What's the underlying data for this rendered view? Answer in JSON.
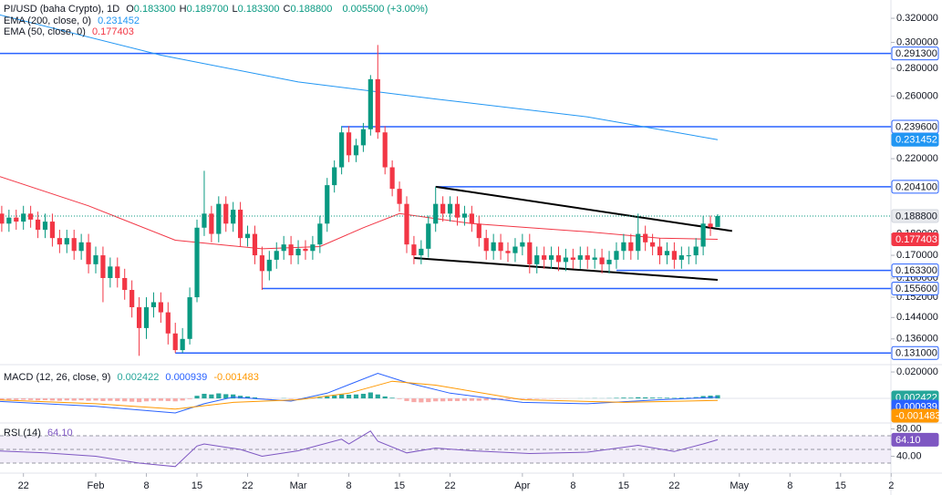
{
  "chart_data": [
    {
      "type": "candlestick",
      "title": "PI/USD (baha Crypto), 1D",
      "header": [
        {
          "key": "O",
          "value": "0.183300"
        },
        {
          "key": "H",
          "value": "0.189700"
        },
        {
          "key": "L",
          "value": "0.183300"
        },
        {
          "key": "C",
          "value": "0.188800"
        }
      ],
      "change": "0.005500 (+3.00%)",
      "up_color": "#089981",
      "down_color": "#f23645",
      "log_scale": true,
      "grid": false,
      "ylim": [
        0.1276,
        0.336
      ],
      "yticks": [
        {
          "value": 0.32,
          "label": "0.320000"
        },
        {
          "value": 0.3,
          "label": "0.300000"
        },
        {
          "value": 0.28,
          "label": "0.280000"
        },
        {
          "value": 0.26,
          "label": "0.260000"
        },
        {
          "value": 0.22,
          "label": "0.220000"
        },
        {
          "value": 0.18,
          "label": "0.180000"
        },
        {
          "value": 0.17,
          "label": "0.170000"
        },
        {
          "value": 0.16,
          "label": "0.160000"
        },
        {
          "value": 0.152,
          "label": "0.152000"
        },
        {
          "value": 0.144,
          "label": "0.144000"
        },
        {
          "value": 0.136,
          "label": "0.136000"
        }
      ],
      "xticks": [
        {
          "value": "01-22",
          "label": "22"
        },
        {
          "value": "02-01",
          "label": "Feb"
        },
        {
          "value": "02-08",
          "label": "8"
        },
        {
          "value": "02-15",
          "label": "15"
        },
        {
          "value": "02-22",
          "label": "22"
        },
        {
          "value": "03-01",
          "label": "Mar"
        },
        {
          "value": "03-08",
          "label": "8"
        },
        {
          "value": "03-15",
          "label": "15"
        },
        {
          "value": "03-22",
          "label": "22"
        },
        {
          "value": "04-01",
          "label": "Apr"
        },
        {
          "value": "04-08",
          "label": "8"
        },
        {
          "value": "04-15",
          "label": "15"
        },
        {
          "value": "04-22",
          "label": "22"
        },
        {
          "value": "05-01",
          "label": "May"
        },
        {
          "value": "05-08",
          "label": "8"
        },
        {
          "value": "05-15",
          "label": "15"
        },
        {
          "value": "05-22",
          "label": "2"
        }
      ],
      "dates": [
        "01-18",
        "01-19",
        "01-20",
        "01-21",
        "01-22",
        "01-23",
        "01-24",
        "01-25",
        "01-26",
        "01-27",
        "01-28",
        "01-29",
        "01-30",
        "01-31",
        "02-01",
        "02-02",
        "02-03",
        "02-04",
        "02-05",
        "02-06",
        "02-07",
        "02-08",
        "02-09",
        "02-10",
        "02-11",
        "02-12",
        "02-13",
        "02-14",
        "02-15",
        "02-16",
        "02-17",
        "02-18",
        "02-19",
        "02-20",
        "02-21",
        "02-22",
        "02-23",
        "02-24",
        "02-25",
        "02-26",
        "02-27",
        "02-28",
        "03-01",
        "03-02",
        "03-03",
        "03-04",
        "03-05",
        "03-06",
        "03-07",
        "03-08",
        "03-09",
        "03-10",
        "03-11",
        "03-12",
        "03-13",
        "03-14",
        "03-15",
        "03-16",
        "03-17",
        "03-18",
        "03-19",
        "03-20",
        "03-21",
        "03-22",
        "03-23",
        "03-24",
        "03-25",
        "03-26",
        "03-27",
        "03-28",
        "03-29",
        "03-30",
        "03-31",
        "04-01",
        "04-02",
        "04-03",
        "04-04",
        "04-05",
        "04-06",
        "04-07",
        "04-08",
        "04-09",
        "04-10",
        "04-11",
        "04-12",
        "04-13",
        "04-14",
        "04-15",
        "04-16",
        "04-17",
        "04-18",
        "04-19",
        "04-20",
        "04-21",
        "04-22",
        "04-23",
        "04-24",
        "04-25",
        "04-26",
        "04-27",
        "04-28"
      ],
      "open": [
        0.198,
        0.19,
        0.185,
        0.188,
        0.186,
        0.19,
        0.187,
        0.182,
        0.186,
        0.178,
        0.175,
        0.178,
        0.172,
        0.176,
        0.166,
        0.17,
        0.16,
        0.165,
        0.16,
        0.155,
        0.148,
        0.14,
        0.148,
        0.15,
        0.146,
        0.138,
        0.132,
        0.136,
        0.152,
        0.183,
        0.19,
        0.18,
        0.195,
        0.185,
        0.192,
        0.178,
        0.18,
        0.17,
        0.163,
        0.168,
        0.172,
        0.175,
        0.17,
        0.173,
        0.172,
        0.175,
        0.185,
        0.205,
        0.215,
        0.236,
        0.222,
        0.228,
        0.238,
        0.272,
        0.236,
        0.215,
        0.203,
        0.195,
        0.175,
        0.17,
        0.173,
        0.185,
        0.195,
        0.19,
        0.195,
        0.188,
        0.19,
        0.185,
        0.178,
        0.172,
        0.176,
        0.172,
        0.171,
        0.174,
        0.176,
        0.166,
        0.17,
        0.168,
        0.17,
        0.167,
        0.169,
        0.168,
        0.17,
        0.168,
        0.169,
        0.166,
        0.168,
        0.172,
        0.176,
        0.172,
        0.18,
        0.176,
        0.174,
        0.17,
        0.172,
        0.168,
        0.17,
        0.17,
        0.174,
        0.185,
        0.1833
      ],
      "high": [
        0.202,
        0.194,
        0.192,
        0.192,
        0.194,
        0.194,
        0.191,
        0.19,
        0.19,
        0.182,
        0.182,
        0.182,
        0.18,
        0.18,
        0.174,
        0.174,
        0.169,
        0.169,
        0.164,
        0.159,
        0.152,
        0.152,
        0.154,
        0.154,
        0.15,
        0.142,
        0.14,
        0.156,
        0.187,
        0.213,
        0.194,
        0.199,
        0.199,
        0.196,
        0.196,
        0.184,
        0.184,
        0.174,
        0.172,
        0.176,
        0.179,
        0.179,
        0.177,
        0.177,
        0.179,
        0.189,
        0.209,
        0.219,
        0.24,
        0.24,
        0.232,
        0.242,
        0.275,
        0.298,
        0.24,
        0.219,
        0.207,
        0.199,
        0.179,
        0.177,
        0.189,
        0.204,
        0.199,
        0.199,
        0.199,
        0.194,
        0.194,
        0.189,
        0.182,
        0.18,
        0.18,
        0.176,
        0.178,
        0.18,
        0.18,
        0.174,
        0.174,
        0.174,
        0.174,
        0.173,
        0.173,
        0.174,
        0.174,
        0.173,
        0.173,
        0.172,
        0.176,
        0.18,
        0.18,
        0.19,
        0.184,
        0.18,
        0.178,
        0.176,
        0.176,
        0.174,
        0.174,
        0.178,
        0.189,
        0.189,
        0.1897
      ],
      "low": [
        0.186,
        0.181,
        0.181,
        0.182,
        0.182,
        0.183,
        0.178,
        0.178,
        0.174,
        0.171,
        0.171,
        0.168,
        0.168,
        0.162,
        0.162,
        0.15,
        0.156,
        0.156,
        0.151,
        0.144,
        0.13,
        0.136,
        0.144,
        0.142,
        0.134,
        0.131,
        0.131,
        0.134,
        0.15,
        0.179,
        0.176,
        0.176,
        0.181,
        0.181,
        0.174,
        0.174,
        0.166,
        0.155,
        0.159,
        0.164,
        0.168,
        0.166,
        0.166,
        0.168,
        0.168,
        0.171,
        0.181,
        0.201,
        0.211,
        0.218,
        0.218,
        0.224,
        0.234,
        0.232,
        0.211,
        0.199,
        0.191,
        0.171,
        0.166,
        0.166,
        0.169,
        0.181,
        0.186,
        0.186,
        0.184,
        0.184,
        0.181,
        0.174,
        0.168,
        0.168,
        0.168,
        0.167,
        0.167,
        0.17,
        0.162,
        0.162,
        0.164,
        0.164,
        0.163,
        0.163,
        0.164,
        0.164,
        0.164,
        0.164,
        0.162,
        0.162,
        0.164,
        0.168,
        0.168,
        0.168,
        0.172,
        0.17,
        0.166,
        0.166,
        0.164,
        0.164,
        0.166,
        0.166,
        0.17,
        0.179,
        0.1833
      ],
      "close": [
        0.19,
        0.185,
        0.188,
        0.186,
        0.19,
        0.187,
        0.182,
        0.186,
        0.178,
        0.175,
        0.178,
        0.172,
        0.176,
        0.166,
        0.17,
        0.16,
        0.165,
        0.16,
        0.155,
        0.148,
        0.14,
        0.148,
        0.15,
        0.146,
        0.138,
        0.132,
        0.136,
        0.152,
        0.183,
        0.19,
        0.18,
        0.195,
        0.185,
        0.192,
        0.178,
        0.18,
        0.17,
        0.163,
        0.168,
        0.172,
        0.175,
        0.17,
        0.173,
        0.172,
        0.175,
        0.185,
        0.205,
        0.215,
        0.236,
        0.222,
        0.228,
        0.238,
        0.272,
        0.236,
        0.215,
        0.203,
        0.195,
        0.175,
        0.17,
        0.173,
        0.185,
        0.195,
        0.19,
        0.195,
        0.188,
        0.19,
        0.185,
        0.178,
        0.172,
        0.176,
        0.172,
        0.171,
        0.174,
        0.176,
        0.166,
        0.17,
        0.168,
        0.17,
        0.167,
        0.169,
        0.168,
        0.17,
        0.168,
        0.169,
        0.166,
        0.168,
        0.172,
        0.176,
        0.172,
        0.18,
        0.176,
        0.174,
        0.17,
        0.172,
        0.168,
        0.17,
        0.17,
        0.174,
        0.185,
        0.1833,
        0.1888
      ],
      "last_price": {
        "value": 0.1888,
        "label": "0.188800"
      },
      "overlays": [
        {
          "name": "EMA (200, close, 0)",
          "color": "#2196f3",
          "x": [
            "01-18",
            "02-10",
            "03-01",
            "03-20",
            "04-10",
            "04-28"
          ],
          "values": [
            0.324,
            0.29,
            0.27,
            0.258,
            0.246,
            0.231452
          ]
        },
        {
          "name": "EMA (50, close, 0)",
          "color": "#f23645",
          "x": [
            "01-18",
            "01-31",
            "02-12",
            "02-24",
            "03-04",
            "03-10",
            "03-15",
            "03-25",
            "04-10",
            "04-20",
            "04-28"
          ],
          "values": [
            0.2107,
            0.194,
            0.177,
            0.173,
            0.174,
            0.183,
            0.19,
            0.185,
            0.181,
            0.178,
            0.177403
          ]
        }
      ],
      "levels": [
        {
          "value": 0.2913,
          "label": "0.291300",
          "start": "01-16"
        },
        {
          "value": 0.2396,
          "label": "0.239600",
          "start": "03-07"
        },
        {
          "value": 0.2041,
          "label": "0.204100",
          "start": "03-20"
        },
        {
          "value": 0.1633,
          "label": "0.163300",
          "start": "04-14"
        },
        {
          "value": 0.1556,
          "label": "0.155600",
          "start": "02-24"
        },
        {
          "value": 0.131,
          "label": "0.131000",
          "start": "02-12"
        }
      ],
      "level_color": "#2962ff",
      "trendlines": [
        {
          "x": [
            "03-20",
            "04-30"
          ],
          "values": [
            0.2041,
            0.1814
          ]
        },
        {
          "x": [
            "03-17",
            "04-28"
          ],
          "values": [
            0.1688,
            0.1592
          ]
        }
      ]
    },
    {
      "type": "macd",
      "title": "MACD (12, 26, close, 9)",
      "ylim": [
        -0.0172,
        0.0221
      ],
      "yticks": [
        {
          "value": 0.02,
          "label": "0.020000"
        }
      ],
      "histogram": {
        "positive_color": "#26a69a",
        "negative_color": "#f7a9a7",
        "values": [
          -0.001,
          -0.001,
          -0.001,
          -0.0012,
          -0.001,
          -0.0012,
          -0.0015,
          -0.0013,
          -0.0016,
          -0.0018,
          -0.0015,
          -0.0017,
          -0.0014,
          -0.0018,
          -0.0016,
          -0.002,
          -0.0018,
          -0.002,
          -0.0022,
          -0.0025,
          -0.0028,
          -0.0022,
          -0.0018,
          -0.0018,
          -0.002,
          -0.0022,
          -0.0016,
          -0.0005,
          0.002,
          0.0035,
          0.003,
          0.0038,
          0.0032,
          0.003,
          0.002,
          0.0015,
          0.0008,
          -0.0002,
          -0.0003,
          -0.0001,
          0.0002,
          -0.0004,
          -0.0003,
          -0.0004,
          -0.0002,
          0.0005,
          0.0015,
          0.0022,
          0.003,
          0.0028,
          0.003,
          0.0035,
          0.0045,
          0.003,
          0.0015,
          0.0005,
          -0.0005,
          -0.002,
          -0.0028,
          -0.003,
          -0.0028,
          -0.0022,
          -0.0022,
          -0.002,
          -0.002,
          -0.0018,
          -0.0018,
          -0.0018,
          -0.0015,
          -0.0012,
          -0.001,
          -0.0008,
          -0.0006,
          -0.0005,
          -0.0006,
          -0.0004,
          -0.0003,
          -0.0002,
          -0.0002,
          -0.0001,
          0,
          0.0001,
          0.0001,
          0.0002,
          0.0001,
          0.0002,
          0.0004,
          0.0006,
          0.0005,
          0.0009,
          0.0008,
          0.0006,
          0.0005,
          0.0005,
          0.0004,
          0.0005,
          0.0006,
          0.001,
          0.0018,
          0.0021,
          0.002422
        ]
      },
      "series": [
        {
          "color": "#2962ff",
          "x": [
            "01-18",
            "02-01",
            "02-12",
            "02-16",
            "02-20",
            "02-28",
            "03-05",
            "03-12",
            "03-16",
            "03-22",
            "04-01",
            "04-10",
            "04-20",
            "04-28"
          ],
          "values": [
            -0.002,
            -0.006,
            -0.011,
            -0.004,
            0.001,
            -0.002,
            0.004,
            0.019,
            0.012,
            0.004,
            -0.003,
            -0.004,
            -0.001,
            0.000939
          ]
        },
        {
          "color": "#ff9800",
          "x": [
            "01-18",
            "02-01",
            "02-12",
            "02-20",
            "03-01",
            "03-08",
            "03-14",
            "03-20",
            "04-01",
            "04-15",
            "04-28"
          ],
          "values": [
            -0.001,
            -0.004,
            -0.008,
            -0.003,
            -0.001,
            0.004,
            0.013,
            0.01,
            -0.001,
            -0.003,
            -0.001483
          ]
        }
      ]
    },
    {
      "type": "rsi",
      "title": "RSI (14)",
      "ylim": [
        16.7,
        86
      ],
      "yticks": [
        {
          "value": 80,
          "label": "80.00"
        },
        {
          "value": 40,
          "label": "40.00"
        }
      ],
      "levels": [
        70,
        50,
        30
      ],
      "band": [
        30,
        70
      ],
      "color": "#7e57c2",
      "x": [
        "01-18",
        "01-25",
        "02-01",
        "02-07",
        "02-12",
        "02-15",
        "02-16",
        "02-21",
        "02-24",
        "03-01",
        "03-07",
        "03-08",
        "03-11",
        "03-12",
        "03-16",
        "03-20",
        "03-25",
        "04-02",
        "04-10",
        "04-17",
        "04-22",
        "04-26",
        "04-28"
      ],
      "values": [
        48,
        45,
        40,
        30,
        25,
        55,
        58,
        50,
        40,
        48,
        65,
        58,
        77,
        62,
        45,
        52,
        48,
        44,
        46,
        56,
        47,
        58,
        64.1
      ],
      "last_label": "64.10"
    }
  ]
}
